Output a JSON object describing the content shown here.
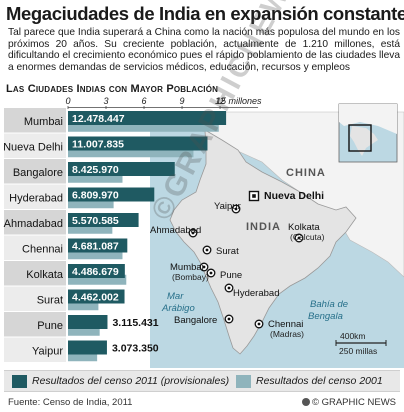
{
  "title": "Megaciudades de India en expansión constante",
  "intro": "Tal parece que India superará a China como la nación más populosa del mundo en los próximos 20 años. Su creciente población, actualmente de 1.210 millones, está dificultando el crecimiento económico pues el rápido poblamiento de las ciudades lleva a enormes demandas de servicios médicos, educación, recursos y empleos",
  "subtitle": "Las Ciudades Indias con Mayor Población",
  "colors": {
    "census_2011": "#1f5a62",
    "census_2001": "#8fb4bc",
    "label_box": "#235f68",
    "row_dark": "#d6d6d6",
    "row_light": "#ececec",
    "map_sea": "#bcd8e3",
    "map_india": "#e4e4e4",
    "map_neighbors": "#f3f3f3"
  },
  "chart_data": {
    "type": "bar",
    "title": "Las Ciudades Indias con Mayor Población",
    "unit_label": "15 millones",
    "xlim": [
      0,
      15
    ],
    "ticks": [
      0,
      3,
      6,
      9,
      12
    ],
    "categories": [
      "Mumbai",
      "Nueva Delhi",
      "Bangalore",
      "Hyderabad",
      "Ahmadabad",
      "Chennai",
      "Kolkata",
      "Surat",
      "Pune",
      "Yaipur"
    ],
    "series": [
      {
        "name": "Resultados del censo 2011 (provisionales)",
        "values": [
          12.478447,
          11.007835,
          8.42597,
          6.80997,
          5.570585,
          4.681087,
          4.486679,
          4.462002,
          3.115431,
          3.07335
        ],
        "labels": [
          "12.478.447",
          "11.007.835",
          "8.425.970",
          "6.809.970",
          "5.570.585",
          "4.681.087",
          "4.486.679",
          "4.462.002",
          "3.115.431",
          "3.073.350"
        ]
      },
      {
        "name": "Resultados del censo 2001",
        "values": [
          11.9,
          9.9,
          4.3,
          3.6,
          3.5,
          4.3,
          4.6,
          2.4,
          2.5,
          2.3
        ]
      }
    ]
  },
  "map": {
    "country_label": "INDIA",
    "china_label": "CHINA",
    "sea_labels": [
      "Mar",
      "Arábigo"
    ],
    "bay_labels": [
      "Bahía de",
      "Bengala"
    ],
    "scale_km": "400km",
    "scale_mi": "250 millas",
    "cities": [
      {
        "name": "Nueva Delhi",
        "sub": "",
        "capital": true
      },
      {
        "name": "Yaipur",
        "sub": ""
      },
      {
        "name": "Ahmadabad",
        "sub": ""
      },
      {
        "name": "Surat",
        "sub": ""
      },
      {
        "name": "Mumbai",
        "sub": "(Bombay)"
      },
      {
        "name": "Pune",
        "sub": ""
      },
      {
        "name": "Hyderabad",
        "sub": ""
      },
      {
        "name": "Kolkata",
        "sub": "(Calcuta)"
      },
      {
        "name": "Bangalore",
        "sub": ""
      },
      {
        "name": "Chennai",
        "sub": "(Madras)"
      }
    ]
  },
  "legend": {
    "item_2011": "Resultados del censo 2011 (provisionales)",
    "item_2001": "Resultados del censo 2001"
  },
  "footer": {
    "source": "Fuente: Censo de India, 2011",
    "credit": "© GRAPHIC NEWS"
  },
  "watermark": "©GRAPHICNEWS"
}
